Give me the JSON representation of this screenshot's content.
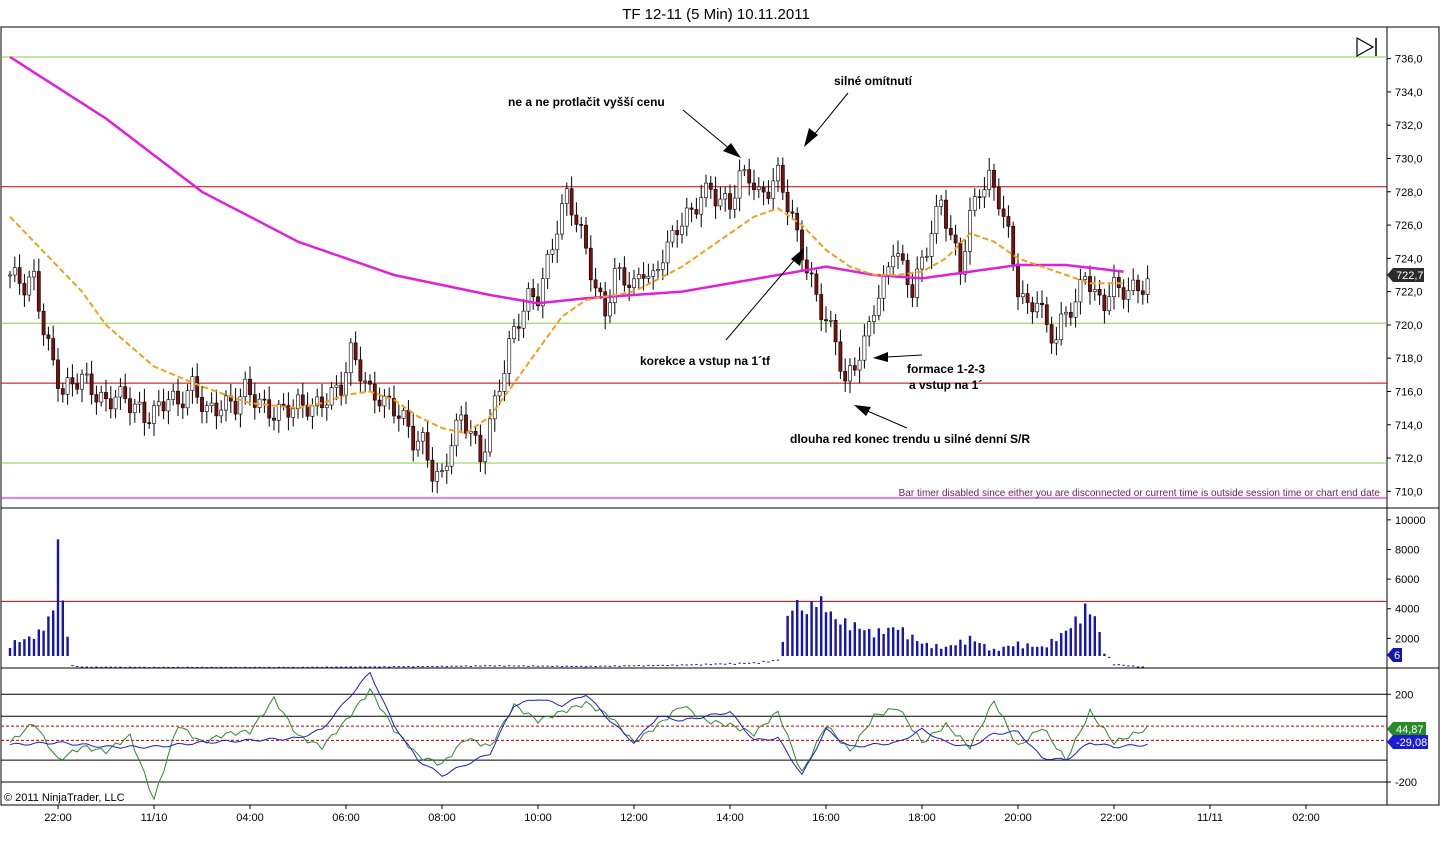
{
  "window": {
    "title": "TF 12-11 (5 Min)  10.11.2011"
  },
  "footer": {
    "copyright": "© 2011 NinjaTrader, LLC"
  },
  "price_panel": {
    "last_price_label": "722,7",
    "timer_message": "Bar timer disabled since either you are disconnected or current time is outside session time or chart end date"
  },
  "volume_panel": {
    "last_volume_label": "6"
  },
  "indicator_panel": {
    "value_green_label": "44,87",
    "value_blue_label": "-29,08"
  },
  "colors": {
    "ma_long": "#e020d8",
    "ma_short": "#f0a020",
    "up_candle": "#ffffff",
    "down_candle": "#7a1010",
    "volume": "#1414b4",
    "horizontal_red": "#c00000",
    "horizontal_green": "#80d040",
    "horizontal_magenta": "#d000d0",
    "osc_green": "#2a8a2a",
    "osc_blue": "#1c1cd0"
  },
  "annotations": [
    {
      "text": "ne a ne protlačit vyšší cenu"
    },
    {
      "text": "silné omítnutí"
    },
    {
      "text": "korekce a vstup na 1´tf"
    },
    {
      "text": "formace 1-2-3"
    },
    {
      "text": "a vstup na 1´"
    },
    {
      "text": "dlouha red konec trendu u silné denní S/R"
    }
  ],
  "chart_data": [
    {
      "type": "candlestick",
      "title": "TF 12-11 (5 Min)  10.11.2011",
      "x_ticks": [
        "22:00",
        "11/10",
        "04:00",
        "06:00",
        "08:00",
        "10:00",
        "12:00",
        "14:00",
        "16:00",
        "18:00",
        "20:00",
        "22:00",
        "11/11",
        "02:00"
      ],
      "y_ticks": [
        "736,0",
        "734,0",
        "732,0",
        "730,0",
        "728,0",
        "726,0",
        "724,0",
        "722,0",
        "720,0",
        "718,0",
        "716,0",
        "714,0",
        "712,0",
        "710,0"
      ],
      "ylim": [
        709.0,
        737.9
      ],
      "horizontal_lines": [
        {
          "value": 736.1,
          "color": "green"
        },
        {
          "value": 728.3,
          "color": "red"
        },
        {
          "value": 720.1,
          "color": "green"
        },
        {
          "value": 716.5,
          "color": "red"
        },
        {
          "value": 711.7,
          "color": "green"
        },
        {
          "value": 709.6,
          "color": "magenta"
        }
      ],
      "close_path": [
        [
          0,
          723.0
        ],
        [
          3,
          722.0
        ],
        [
          5,
          722.6
        ],
        [
          7,
          720.0
        ],
        [
          9,
          718.0
        ],
        [
          11,
          716.0
        ],
        [
          15,
          716.5
        ],
        [
          20,
          715.6
        ],
        [
          22,
          716.0
        ],
        [
          25,
          715.0
        ],
        [
          28,
          714.3
        ],
        [
          30,
          715.0
        ],
        [
          33,
          716.0
        ],
        [
          35,
          715.0
        ],
        [
          38,
          716.0
        ],
        [
          41,
          715.0
        ],
        [
          44,
          715.5
        ],
        [
          47,
          715.0
        ],
        [
          49,
          715.8
        ],
        [
          52,
          715.4
        ],
        [
          55,
          715.0
        ],
        [
          59,
          714.8
        ],
        [
          63,
          715.0
        ],
        [
          66,
          716.0
        ],
        [
          69,
          716.2
        ],
        [
          71,
          718.0
        ],
        [
          73,
          717.0
        ],
        [
          75,
          716.0
        ],
        [
          77,
          716.0
        ],
        [
          80,
          715.0
        ],
        [
          82,
          714.0
        ],
        [
          84,
          712.8
        ],
        [
          86,
          713.0
        ],
        [
          88,
          711.5
        ],
        [
          90,
          711.0
        ],
        [
          92,
          713.0
        ],
        [
          94,
          714.0
        ],
        [
          96,
          713.5
        ],
        [
          98,
          712.0
        ],
        [
          100,
          714.5
        ],
        [
          102,
          716.5
        ],
        [
          104,
          718.5
        ],
        [
          106,
          720.0
        ],
        [
          108,
          721.5
        ],
        [
          110,
          722.0
        ],
        [
          112,
          724.0
        ],
        [
          114,
          726.0
        ],
        [
          116,
          727.5
        ],
        [
          118,
          726.0
        ],
        [
          120,
          724.5
        ],
        [
          122,
          722.5
        ],
        [
          124,
          721.0
        ],
        [
          126,
          723.0
        ],
        [
          128,
          722.5
        ],
        [
          130,
          722.0
        ],
        [
          132,
          723.5
        ],
        [
          134,
          723.0
        ],
        [
          136,
          724.5
        ],
        [
          138,
          725.0
        ],
        [
          140,
          726.0
        ],
        [
          142,
          726.5
        ],
        [
          144,
          728.0
        ],
        [
          146,
          728.5
        ],
        [
          148,
          727.5
        ],
        [
          150,
          727.0
        ],
        [
          152,
          728.5
        ],
        [
          154,
          729.0
        ],
        [
          156,
          728.0
        ],
        [
          158,
          728.5
        ],
        [
          160,
          729.0
        ],
        [
          162,
          727.0
        ],
        [
          164,
          725.0
        ],
        [
          166,
          723.5
        ],
        [
          168,
          722.0
        ],
        [
          170,
          720.5
        ],
        [
          172,
          719.0
        ],
        [
          174,
          716.0
        ],
        [
          176,
          717.5
        ],
        [
          178,
          719.0
        ],
        [
          180,
          721.5
        ],
        [
          182,
          722.5
        ],
        [
          184,
          724.5
        ],
        [
          186,
          723.0
        ],
        [
          188,
          722.0
        ],
        [
          190,
          724.0
        ],
        [
          192,
          726.0
        ],
        [
          194,
          727.5
        ],
        [
          196,
          725.0
        ],
        [
          198,
          723.0
        ],
        [
          200,
          726.5
        ],
        [
          202,
          728.5
        ],
        [
          204,
          729.0
        ],
        [
          206,
          727.5
        ],
        [
          208,
          725.0
        ],
        [
          210,
          722.0
        ],
        [
          212,
          721.0
        ],
        [
          214,
          722.0
        ],
        [
          216,
          720.0
        ],
        [
          218,
          719.0
        ],
        [
          220,
          720.5
        ],
        [
          222,
          721.0
        ],
        [
          224,
          723.5
        ],
        [
          226,
          722.0
        ],
        [
          228,
          721.5
        ],
        [
          230,
          722.0
        ],
        [
          233,
          721.7
        ],
        [
          235,
          722.5
        ],
        [
          237,
          722.7
        ]
      ],
      "series": [
        {
          "name": "",
          "type": "line",
          "color": "magenta",
          "x": [
            0,
            20,
            40,
            60,
            80,
            100,
            110,
            120,
            140,
            160,
            170,
            180,
            190,
            200,
            210,
            220,
            232
          ],
          "values": [
            736.1,
            732.4,
            728.0,
            725.0,
            723.0,
            721.8,
            721.3,
            721.6,
            722.0,
            723.0,
            723.5,
            723.0,
            722.8,
            723.2,
            723.6,
            723.6,
            723.2
          ]
        },
        {
          "name": "",
          "type": "line",
          "color": "orange",
          "style": "dashed",
          "x": [
            0,
            5,
            10,
            15,
            20,
            30,
            40,
            50,
            60,
            65,
            70,
            75,
            80,
            85,
            90,
            95,
            100,
            105,
            110,
            115,
            120,
            130,
            140,
            150,
            155,
            160,
            165,
            170,
            175,
            180,
            185,
            190,
            195,
            200,
            205,
            210,
            215,
            220,
            225,
            232
          ],
          "values": [
            726.5,
            725.0,
            723.5,
            722.0,
            720.0,
            717.5,
            716.3,
            715.3,
            715.0,
            715.3,
            715.8,
            716.0,
            715.5,
            714.5,
            713.8,
            713.5,
            714.5,
            716.5,
            718.5,
            720.5,
            721.5,
            722.0,
            723.5,
            725.5,
            726.5,
            727.0,
            726.0,
            724.5,
            723.5,
            723.0,
            723.0,
            723.2,
            724.0,
            725.5,
            725.0,
            724.0,
            723.5,
            723.0,
            722.5,
            722.5
          ]
        }
      ]
    },
    {
      "type": "bar",
      "title": "",
      "y_ticks": [
        "10000",
        "8000",
        "6000",
        "4000",
        "2000"
      ],
      "ylim": [
        0,
        10800
      ],
      "reference_line": 4500,
      "volume_profile": [
        [
          0,
          1800
        ],
        [
          2,
          2000
        ],
        [
          4,
          2200
        ],
        [
          6,
          2600
        ],
        [
          8,
          3600
        ],
        [
          9,
          4200
        ],
        [
          10,
          9900
        ],
        [
          11,
          4600
        ],
        [
          12,
          2800
        ],
        [
          13,
          200
        ],
        [
          15,
          100
        ],
        [
          30,
          80
        ],
        [
          60,
          80
        ],
        [
          90,
          150
        ],
        [
          100,
          200
        ],
        [
          120,
          150
        ],
        [
          140,
          250
        ],
        [
          155,
          400
        ],
        [
          160,
          600
        ],
        [
          163,
          5000
        ],
        [
          166,
          4000
        ],
        [
          168,
          5200
        ],
        [
          170,
          4500
        ],
        [
          172,
          3500
        ],
        [
          175,
          3300
        ],
        [
          178,
          2800
        ],
        [
          180,
          2600
        ],
        [
          185,
          3000
        ],
        [
          190,
          1800
        ],
        [
          195,
          1500
        ],
        [
          200,
          2200
        ],
        [
          205,
          1300
        ],
        [
          210,
          1800
        ],
        [
          215,
          1500
        ],
        [
          218,
          2200
        ],
        [
          220,
          2700
        ],
        [
          222,
          3500
        ],
        [
          224,
          4400
        ],
        [
          226,
          3800
        ],
        [
          228,
          1200
        ],
        [
          230,
          300
        ],
        [
          236,
          100
        ]
      ]
    },
    {
      "type": "line",
      "title": "",
      "y_ticks": [
        "200",
        "-200"
      ],
      "ylim": [
        -305,
        320
      ],
      "horizontal_lines": [
        200,
        100,
        -100,
        -200
      ],
      "dashed_lines": [
        55,
        -10
      ],
      "series": [
        {
          "name": "",
          "color": "green",
          "x": [
            0,
            5,
            10,
            15,
            20,
            25,
            30,
            35,
            40,
            45,
            50,
            55,
            60,
            65,
            70,
            75,
            80,
            85,
            90,
            95,
            100,
            105,
            110,
            115,
            120,
            125,
            130,
            135,
            140,
            145,
            150,
            155,
            160,
            165,
            170,
            175,
            180,
            185,
            190,
            195,
            200,
            205,
            210,
            215,
            220,
            225,
            230,
            237
          ],
          "values": [
            -20,
            70,
            -100,
            -40,
            -60,
            10,
            -280,
            60,
            -20,
            20,
            30,
            180,
            10,
            -40,
            80,
            220,
            40,
            -80,
            -120,
            0,
            -40,
            150,
            80,
            120,
            160,
            100,
            -20,
            60,
            150,
            80,
            60,
            20,
            120,
            -160,
            60,
            -60,
            100,
            140,
            -20,
            60,
            -40,
            170,
            -40,
            50,
            -100,
            120,
            -20,
            44.87
          ]
        },
        {
          "name": "",
          "color": "blue",
          "x": [
            0,
            10,
            20,
            30,
            40,
            50,
            60,
            65,
            70,
            75,
            80,
            85,
            90,
            95,
            100,
            105,
            110,
            115,
            120,
            125,
            130,
            135,
            140,
            145,
            150,
            155,
            160,
            165,
            170,
            175,
            180,
            185,
            190,
            195,
            200,
            205,
            210,
            215,
            220,
            225,
            230,
            237
          ],
          "values": [
            -30,
            -20,
            -40,
            -40,
            -20,
            -10,
            0,
            40,
            170,
            300,
            60,
            -100,
            -170,
            -120,
            -70,
            150,
            180,
            150,
            200,
            80,
            -20,
            100,
            80,
            100,
            120,
            -10,
            0,
            -170,
            40,
            -40,
            -30,
            -20,
            40,
            -20,
            -40,
            20,
            30,
            -90,
            -100,
            -20,
            -40,
            -29.08
          ]
        }
      ]
    }
  ]
}
